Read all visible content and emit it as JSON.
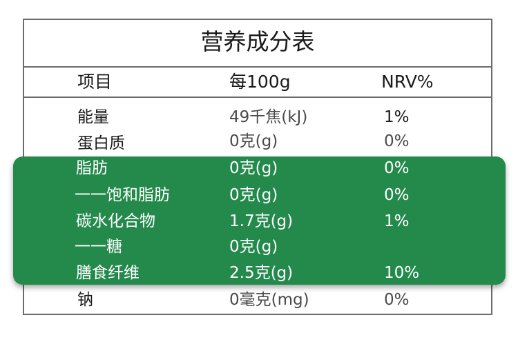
{
  "title": "营养成分表",
  "header": {
    "item": "项目",
    "per100g": "每100g",
    "nrv": "NRV%"
  },
  "rows": [
    {
      "name": "能量",
      "value": "49千焦(kJ)",
      "nrv": "1%"
    },
    {
      "name": "蛋白质",
      "value": "0克(g)",
      "nrv": "0%"
    },
    {
      "name": "脂肪",
      "value": "0克(g)",
      "nrv": "0%"
    },
    {
      "name": "一一饱和脂肪",
      "value": "0克(g)",
      "nrv": "0%"
    },
    {
      "name": "碳水化合物",
      "value": "1.7克(g)",
      "nrv": "1%"
    },
    {
      "name": "一一糖",
      "value": "0克(g)",
      "nrv": ""
    },
    {
      "name": "膳食纤维",
      "value": "2.5克(g)",
      "nrv": "10%"
    },
    {
      "name": "钠",
      "value": "0毫克(mg)",
      "nrv": "0%"
    }
  ],
  "colors": {
    "highlight": "#238a4c",
    "border": "#6b6b6b"
  }
}
